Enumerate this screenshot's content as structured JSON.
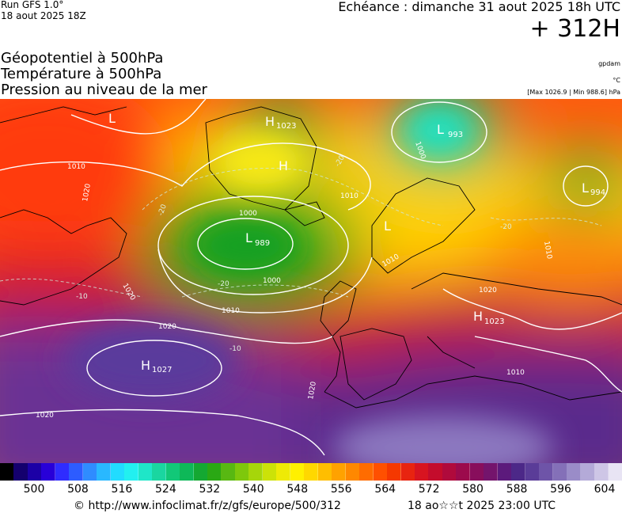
{
  "header": {
    "run": "Run GFS 1.0°",
    "run_time": "18 aout 2025 18Z",
    "valid": "Echéance : dimanche 31 aout 2025 18h UTC",
    "lead": "+ 312H"
  },
  "layers": {
    "geopotential": "Géopotentiel à 500hPa",
    "temperature": "Température à 500hPa",
    "pressure": "Pression au niveau de la mer"
  },
  "units": {
    "geopotential_unit": "gpdam",
    "temperature_unit": "°C",
    "pressure_range": "[Max 1026.9 | Min 988.6] hPa"
  },
  "centers": [
    {
      "type": "H",
      "value": "1023"
    },
    {
      "type": "L",
      "value": "993"
    },
    {
      "type": "L",
      "value": "994"
    },
    {
      "type": "L",
      "value": "989"
    },
    {
      "type": "H",
      "value": "1023"
    },
    {
      "type": "H",
      "value": "1027"
    },
    {
      "type": "L",
      "value": ""
    },
    {
      "type": "H",
      "value": ""
    },
    {
      "type": "L",
      "value": ""
    }
  ],
  "isobar_labels": [
    "1010",
    "1020",
    "1000",
    "1010",
    "1000",
    "1010",
    "1020",
    "1020",
    "1000",
    "1010",
    "1020",
    "1020",
    "1010",
    "1020",
    "1010"
  ],
  "isotherm_labels": [
    "-20",
    "-20",
    "-20",
    "-20",
    "-10",
    "-10"
  ],
  "scale": {
    "ticks": [
      "500",
      "508",
      "516",
      "524",
      "532",
      "540",
      "548",
      "556",
      "564",
      "572",
      "580",
      "588",
      "596",
      "604"
    ],
    "colors": [
      "#000000",
      "#14006e",
      "#1c00a6",
      "#2800d8",
      "#2f2cff",
      "#2d5cff",
      "#2f8cff",
      "#29b8ff",
      "#21dcff",
      "#22f0f0",
      "#1fe6c8",
      "#1ad6a0",
      "#12c878",
      "#0eb858",
      "#14a832",
      "#2aa814",
      "#58b812",
      "#7ec80c",
      "#a6d60a",
      "#cce208",
      "#eeea06",
      "#fff000",
      "#ffd800",
      "#ffbe00",
      "#ffa200",
      "#ff8800",
      "#ff6c00",
      "#ff5000",
      "#f53800",
      "#e82410",
      "#d81420",
      "#c40c2c",
      "#b00a3c",
      "#9c0a4c",
      "#880e5c",
      "#74146c",
      "#5c1a7c",
      "#4c2888",
      "#5a3c98",
      "#6e54a8",
      "#8470b8",
      "#9a8cc8",
      "#b4aad8",
      "#cec6e6",
      "#e8e4f4"
    ]
  },
  "footer": {
    "url": "© http://www.infoclimat.fr/z/gfs/europe/500/312",
    "generated": "18 ao☆☆t 2025 23:00 UTC"
  }
}
